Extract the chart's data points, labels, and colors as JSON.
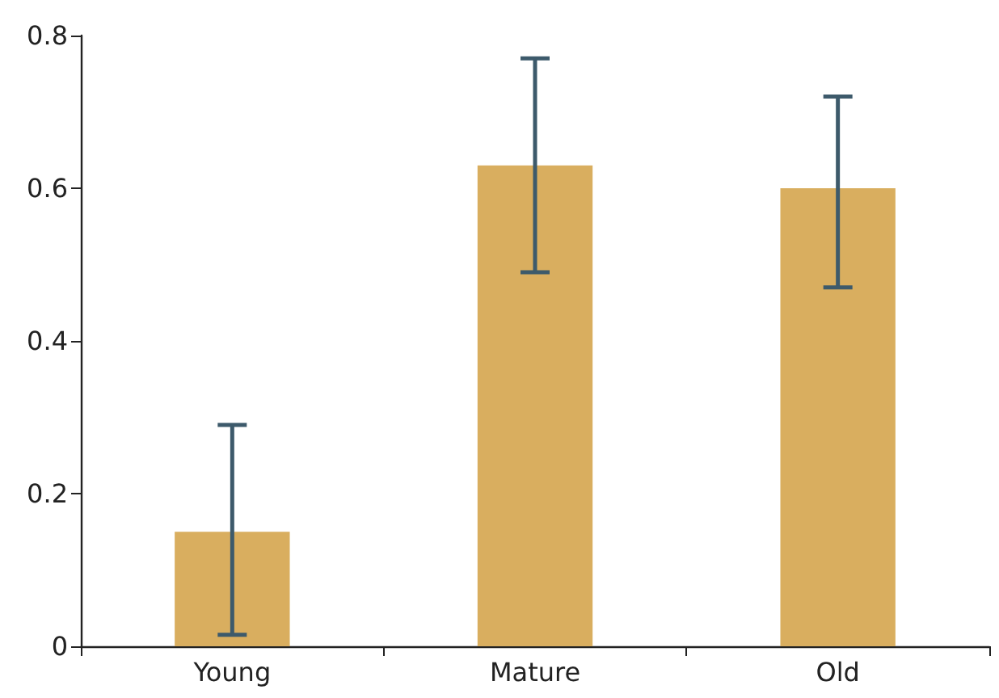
{
  "chart_data": {
    "type": "bar",
    "categories": [
      "Young",
      "Mature",
      "Old"
    ],
    "values": [
      0.15,
      0.63,
      0.6
    ],
    "errors": [
      [
        0.015,
        0.29
      ],
      [
        0.49,
        0.77
      ],
      [
        0.47,
        0.72
      ]
    ],
    "color": "#d9ae5f",
    "ylim": [
      0,
      0.8
    ],
    "yticks": [
      0,
      0.2,
      0.4,
      0.6,
      0.8
    ],
    "grid": false
  }
}
